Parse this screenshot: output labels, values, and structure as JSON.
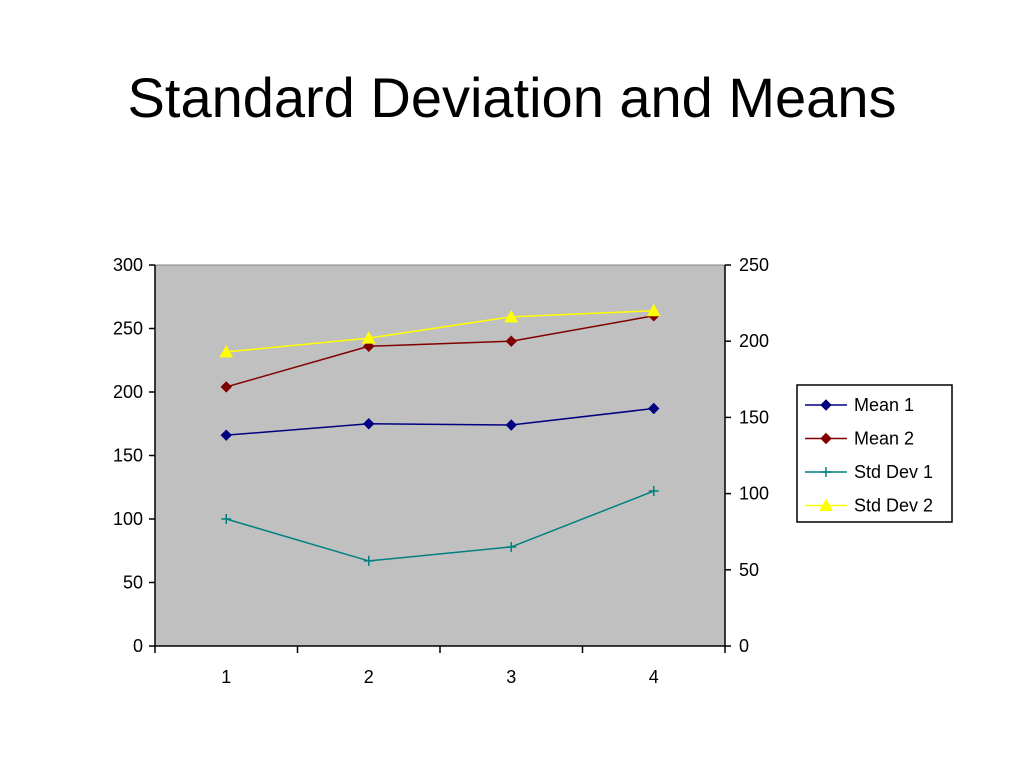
{
  "slide": {
    "title": "Standard Deviation and Means"
  },
  "chart_data": {
    "type": "line",
    "title": "",
    "xlabel": "",
    "ylabel": "",
    "categories": [
      "1",
      "2",
      "3",
      "4"
    ],
    "y_left": {
      "lim": [
        0,
        300
      ],
      "ticks": [
        0,
        50,
        100,
        150,
        200,
        250,
        300
      ]
    },
    "y_right": {
      "lim": [
        0,
        250
      ],
      "ticks": [
        0,
        50,
        100,
        150,
        200,
        250
      ]
    },
    "grid": false,
    "plot_background": "#c0c0c0",
    "legend_position": "right",
    "series": [
      {
        "name": "Mean 1",
        "axis": "left",
        "values": [
          166,
          175,
          174,
          187
        ],
        "color": "#000080",
        "marker": "diamond"
      },
      {
        "name": "Mean 2",
        "axis": "left",
        "values": [
          204,
          236,
          240,
          260
        ],
        "color": "#800000",
        "marker": "diamond"
      },
      {
        "name": "Std Dev 1",
        "axis": "left",
        "values": [
          100,
          67,
          78,
          122
        ],
        "color": "#008080",
        "marker": "plus"
      },
      {
        "name": "Std Dev 2",
        "axis": "right",
        "values": [
          193,
          202,
          216,
          220
        ],
        "color": "#ffff00",
        "marker": "triangle"
      }
    ]
  }
}
